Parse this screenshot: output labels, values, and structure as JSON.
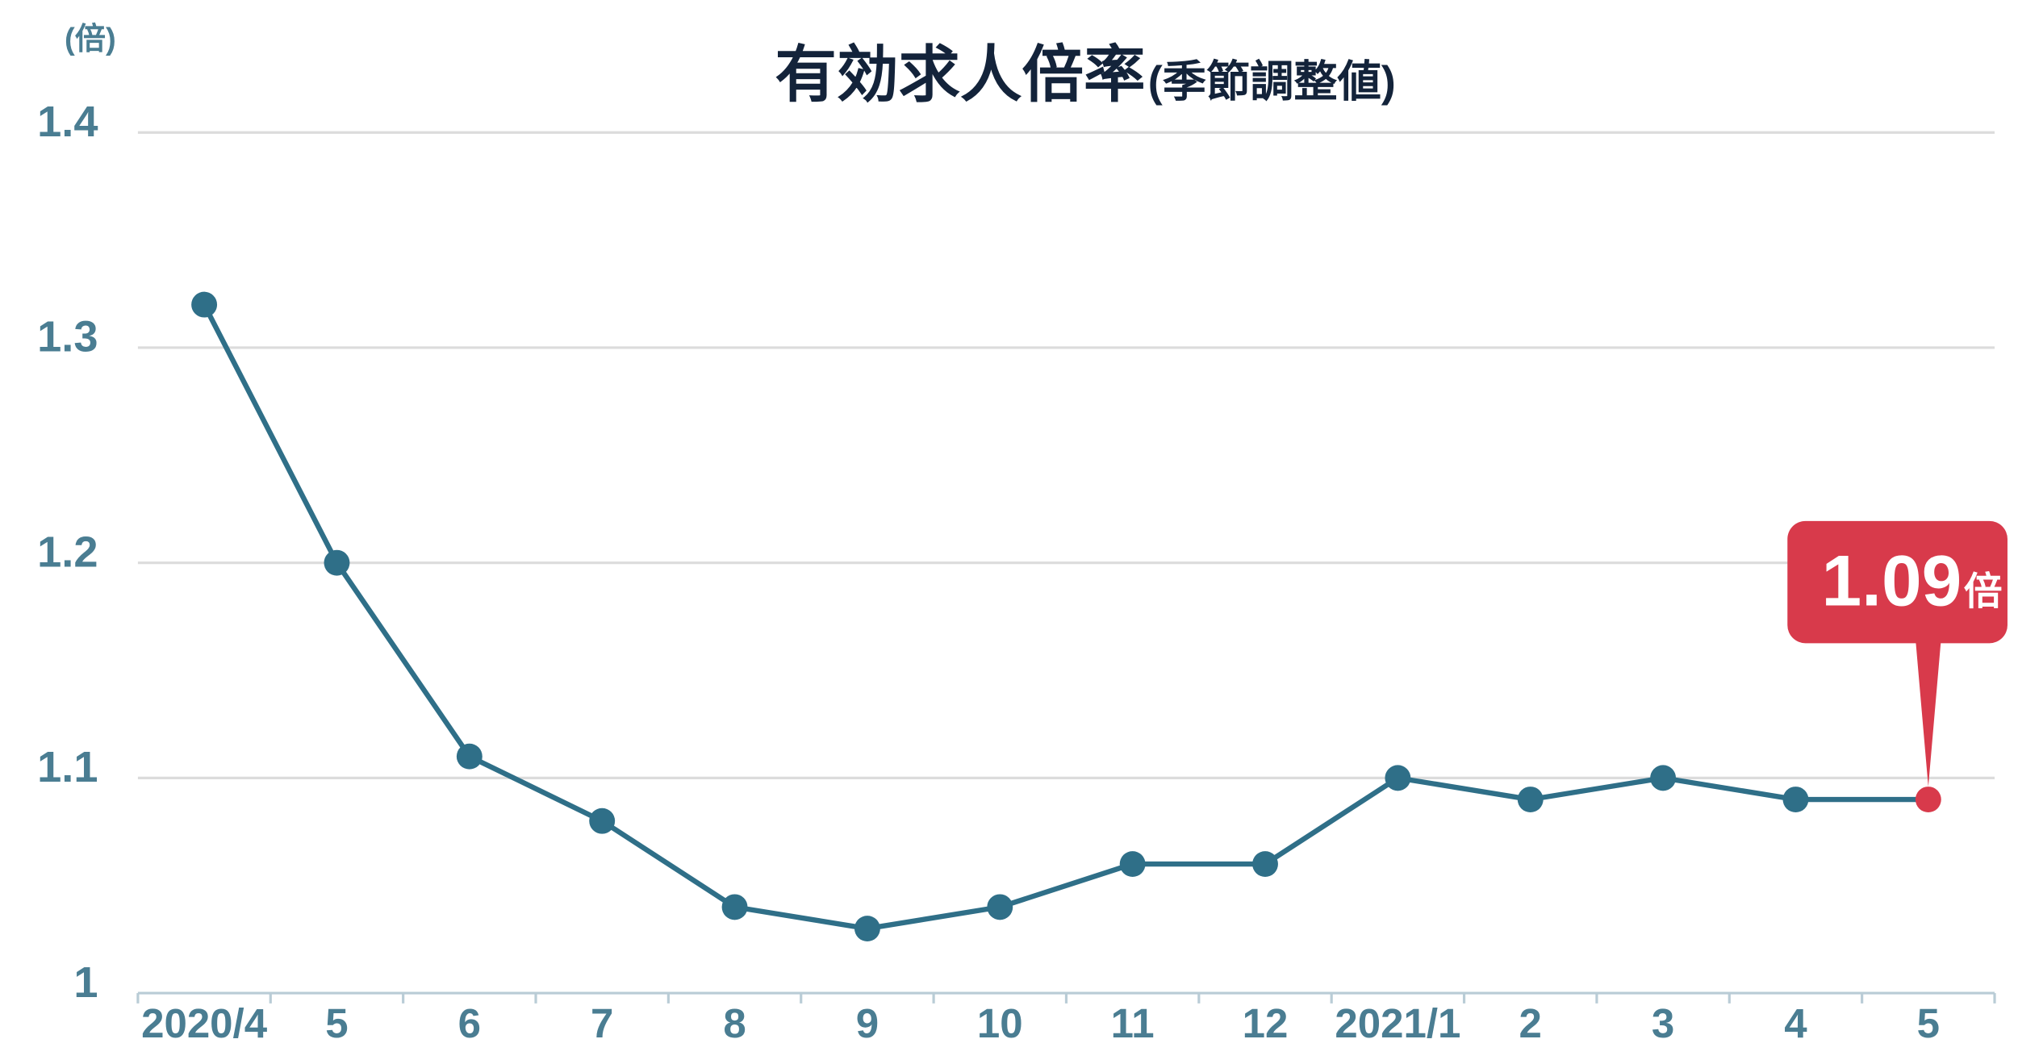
{
  "chart_data": {
    "type": "line",
    "title": "有効求人倍率",
    "subtitle": "(季節調整値)",
    "y_unit_label": "(倍)",
    "categories": [
      "2020/4",
      "5",
      "6",
      "7",
      "8",
      "9",
      "10",
      "11",
      "12",
      "2021/1",
      "2",
      "3",
      "4",
      "5"
    ],
    "values": [
      1.32,
      1.2,
      1.11,
      1.08,
      1.04,
      1.03,
      1.04,
      1.06,
      1.06,
      1.1,
      1.09,
      1.1,
      1.09,
      1.09
    ],
    "color": "#2f6f88",
    "highlight_index": 13,
    "highlight_color": "#d83a4b",
    "highlight_unit": "倍",
    "ylim": [
      1,
      1.4
    ],
    "yticks": [
      1,
      1.1,
      1.2,
      1.3,
      1.4
    ],
    "grid": true
  }
}
